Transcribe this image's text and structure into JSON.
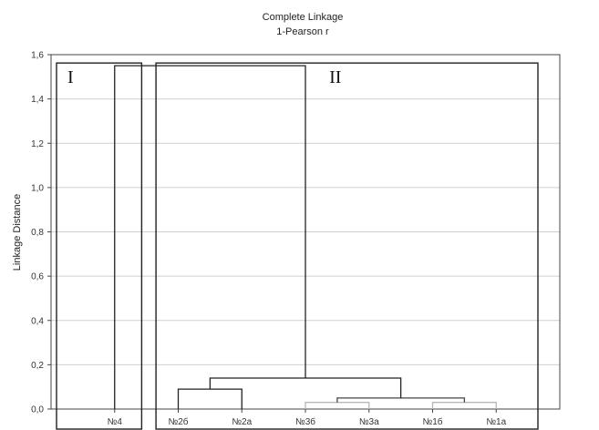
{
  "chart_data": {
    "type": "dendrogram",
    "title": "Complete Linkage",
    "subtitle": "1-Pearson r",
    "ylabel": "Linkage Distance",
    "xlabel": "",
    "ylim": [
      0,
      1.6
    ],
    "yticks": [
      "0,0",
      "0,2",
      "0,4",
      "0,6",
      "0,8",
      "1,0",
      "1,2",
      "1,4",
      "1,6"
    ],
    "ytick_values": [
      0,
      0.2,
      0.4,
      0.6,
      0.8,
      1.0,
      1.2,
      1.4,
      1.6
    ],
    "grid": true,
    "leaves": [
      "№4",
      "№2б",
      "№2а",
      "№3б",
      "№3а",
      "№1б",
      "№1а"
    ],
    "merges": [
      {
        "left": "№1б",
        "right": "№1а",
        "height": 0.03,
        "color": "#b8b8b8"
      },
      {
        "left": "№3б",
        "right": "№3а",
        "height": 0.03,
        "color": "#b8b8b8"
      },
      {
        "left": "№3б+№3а",
        "right": "№1б+№1а",
        "height": 0.05,
        "color": "#444444"
      },
      {
        "left": "№2б",
        "right": "№2а",
        "height": 0.09,
        "color": "#222222"
      },
      {
        "left": "№2б+№2а",
        "right": "№3б+№3а+№1б+№1а",
        "height": 0.14,
        "color": "#222222"
      },
      {
        "left": "№4",
        "right": "rest",
        "height": 1.55,
        "color": "#222222"
      }
    ],
    "clusters": [
      {
        "label": "I",
        "members": [
          "№4"
        ]
      },
      {
        "label": "II",
        "members": [
          "№2б",
          "№2а",
          "№3б",
          "№3а",
          "№1б",
          "№1а"
        ]
      }
    ]
  }
}
